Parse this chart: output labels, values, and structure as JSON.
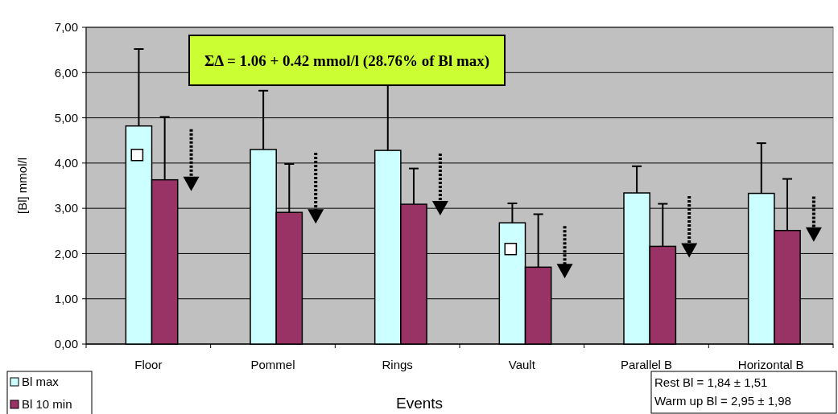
{
  "chart_data": {
    "type": "bar",
    "xlabel": "Events",
    "ylabel": "[Bl] mmol/l",
    "categories": [
      "Floor",
      "Pommel",
      "Rings",
      "Vault",
      "Parallel B",
      "Horizontal B"
    ],
    "series": [
      {
        "name": "Bl max",
        "color": "#ccffff",
        "values": [
          4.82,
          4.3,
          4.28,
          2.68,
          3.34,
          3.33
        ],
        "errors": [
          [
            4.82,
            6.52
          ],
          [
            4.3,
            5.6
          ],
          [
            4.28,
            5.72
          ],
          [
            2.68,
            3.11
          ],
          [
            3.34,
            3.93
          ],
          [
            3.33,
            4.44
          ]
        ]
      },
      {
        "name": "Bl 10 min",
        "color": "#993366",
        "values": [
          3.63,
          2.91,
          3.09,
          1.7,
          2.16,
          2.51
        ],
        "errors": [
          [
            3.63,
            5.02
          ],
          [
            2.91,
            3.98
          ],
          [
            3.09,
            3.88
          ],
          [
            1.7,
            2.87
          ],
          [
            2.16,
            3.1
          ],
          [
            2.51,
            3.65
          ]
        ]
      },
      {
        "type": "scatter",
        "marker": "square",
        "color": "#ffffff",
        "x": [
          "Floor",
          "Vault"
        ],
        "values": [
          4.18,
          2.1
        ]
      }
    ],
    "ylim": [
      0,
      7
    ],
    "yticks": [
      {
        "value": 0,
        "label": "0,00"
      },
      {
        "value": 1,
        "label": "1,00"
      },
      {
        "value": 2,
        "label": "2,00"
      },
      {
        "value": 3,
        "label": "3,00"
      },
      {
        "value": 4,
        "label": "4,00"
      },
      {
        "value": 5,
        "label": "5,00"
      },
      {
        "value": 6,
        "label": "6,00"
      },
      {
        "value": 7,
        "label": "7,00"
      }
    ],
    "grid": "y",
    "legend": "bottom left",
    "annotations": [
      "ΣΔ = 1.06 + 0.42 mmol/l (28.76% of Bl max)",
      "Rest Bl = 1,84 ± 1,51",
      "Warm up Bl = 2,95 ± 1,98"
    ]
  }
}
